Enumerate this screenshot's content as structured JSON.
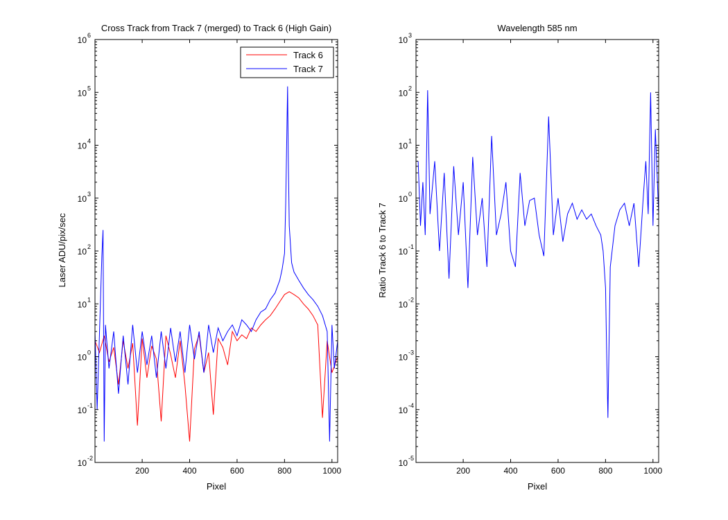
{
  "colors": {
    "track6": "#ff0000",
    "track7": "#0000ff",
    "axes": "#000000",
    "background": "#ffffff"
  },
  "chart_data": [
    {
      "type": "line",
      "title": "Cross Track from Track 7 (merged) to Track 6 (High Gain)",
      "xlabel": "Pixel",
      "ylabel": "Laser ADU/pix/sec",
      "xlim": [
        1,
        1024
      ],
      "ylim": [
        0.01,
        1000000
      ],
      "yscale": "log",
      "grid": false,
      "legend_position": "top-right",
      "xticks": [
        200,
        400,
        600,
        800,
        1000
      ],
      "yticks": [
        {
          "base": "10",
          "exp": "-2"
        },
        {
          "base": "10",
          "exp": "-1"
        },
        {
          "base": "10",
          "exp": "0"
        },
        {
          "base": "10",
          "exp": "1"
        },
        {
          "base": "10",
          "exp": "2"
        },
        {
          "base": "10",
          "exp": "3"
        },
        {
          "base": "10",
          "exp": "4"
        },
        {
          "base": "10",
          "exp": "5"
        },
        {
          "base": "10",
          "exp": "6"
        }
      ],
      "series": [
        {
          "name": "Track 6",
          "color": "#ff0000",
          "x": [
            1,
            20,
            40,
            60,
            80,
            100,
            120,
            140,
            160,
            180,
            200,
            220,
            240,
            260,
            280,
            300,
            320,
            340,
            360,
            380,
            400,
            420,
            440,
            460,
            480,
            500,
            520,
            540,
            560,
            580,
            600,
            620,
            640,
            660,
            680,
            700,
            720,
            740,
            760,
            780,
            800,
            820,
            840,
            860,
            880,
            900,
            920,
            940,
            960,
            980,
            1000,
            1024
          ],
          "y": [
            2,
            1.2,
            2.5,
            0.8,
            1.5,
            0.3,
            2,
            0.6,
            1.8,
            0.05,
            2.2,
            0.4,
            1.6,
            0.9,
            0.06,
            2.5,
            1.1,
            0.4,
            2,
            0.3,
            0.025,
            1.4,
            2.6,
            0.5,
            1.2,
            0.08,
            2.2,
            1.5,
            0.7,
            3,
            2,
            2.6,
            2.2,
            3.5,
            3,
            4,
            5,
            6,
            8,
            11,
            15,
            17,
            15,
            13,
            10,
            8,
            6,
            4,
            0.07,
            2,
            0.5,
            1
          ]
        },
        {
          "name": "Track 7",
          "color": "#0000ff",
          "x": [
            1,
            10,
            30,
            35,
            40,
            45,
            60,
            80,
            100,
            120,
            140,
            160,
            180,
            200,
            220,
            240,
            260,
            280,
            300,
            320,
            340,
            360,
            380,
            400,
            420,
            440,
            460,
            480,
            500,
            520,
            540,
            560,
            580,
            600,
            620,
            640,
            660,
            680,
            700,
            720,
            740,
            760,
            780,
            790,
            800,
            805,
            810,
            813,
            816,
            820,
            830,
            840,
            860,
            880,
            900,
            920,
            940,
            960,
            980,
            990,
            1000,
            1010,
            1024
          ],
          "y": [
            3,
            0.1,
            80,
            250,
            0.025,
            4,
            0.6,
            3,
            0.2,
            2.5,
            0.3,
            4,
            0.5,
            3,
            0.7,
            2.5,
            0.4,
            3,
            0.6,
            3.5,
            0.8,
            3,
            0.5,
            4,
            0.9,
            3,
            0.5,
            4,
            1.2,
            3.5,
            2,
            3,
            4,
            2.5,
            5,
            4,
            3,
            5,
            7,
            8,
            12,
            16,
            28,
            45,
            90,
            800,
            20000,
            130000,
            6000,
            300,
            60,
            40,
            28,
            20,
            15,
            12,
            9,
            6,
            3,
            0.025,
            4,
            0.6,
            2
          ]
        }
      ]
    },
    {
      "type": "line",
      "title": "Wavelength 585 nm",
      "xlabel": "Pixel",
      "ylabel": "Ratio Track 6 to Track 7",
      "xlim": [
        1,
        1024
      ],
      "ylim": [
        1e-05,
        1000
      ],
      "yscale": "log",
      "grid": false,
      "xticks": [
        200,
        400,
        600,
        800,
        1000
      ],
      "yticks": [
        {
          "base": "10",
          "exp": "-5"
        },
        {
          "base": "10",
          "exp": "-4"
        },
        {
          "base": "10",
          "exp": "-3"
        },
        {
          "base": "10",
          "exp": "-2"
        },
        {
          "base": "10",
          "exp": "-1"
        },
        {
          "base": "10",
          "exp": "0"
        },
        {
          "base": "10",
          "exp": "1"
        },
        {
          "base": "10",
          "exp": "2"
        },
        {
          "base": "10",
          "exp": "3"
        }
      ],
      "series": [
        {
          "color": "#0000ff",
          "x": [
            10,
            20,
            30,
            40,
            50,
            60,
            80,
            100,
            120,
            140,
            160,
            180,
            200,
            220,
            240,
            260,
            280,
            300,
            320,
            340,
            360,
            380,
            400,
            420,
            440,
            460,
            480,
            500,
            520,
            540,
            560,
            580,
            600,
            620,
            640,
            660,
            680,
            700,
            720,
            740,
            760,
            780,
            790,
            800,
            805,
            810,
            815,
            820,
            840,
            860,
            880,
            900,
            920,
            940,
            960,
            970,
            980,
            990,
            1000,
            1010,
            1024
          ],
          "y": [
            5,
            0.3,
            2,
            0.2,
            110,
            0.5,
            5,
            0.1,
            3,
            0.03,
            4,
            0.2,
            2,
            0.02,
            6,
            0.2,
            1,
            0.05,
            15,
            0.2,
            0.5,
            2,
            0.1,
            0.05,
            3,
            0.3,
            0.9,
            1,
            0.2,
            0.08,
            35,
            0.2,
            1,
            0.15,
            0.5,
            0.8,
            0.4,
            0.6,
            0.4,
            0.5,
            0.3,
            0.2,
            0.1,
            0.02,
            0.001,
            7e-05,
            0.002,
            0.05,
            0.3,
            0.6,
            0.8,
            0.3,
            0.8,
            0.05,
            1.2,
            5,
            0.5,
            100,
            0.3,
            20,
            0.5
          ]
        }
      ]
    }
  ]
}
